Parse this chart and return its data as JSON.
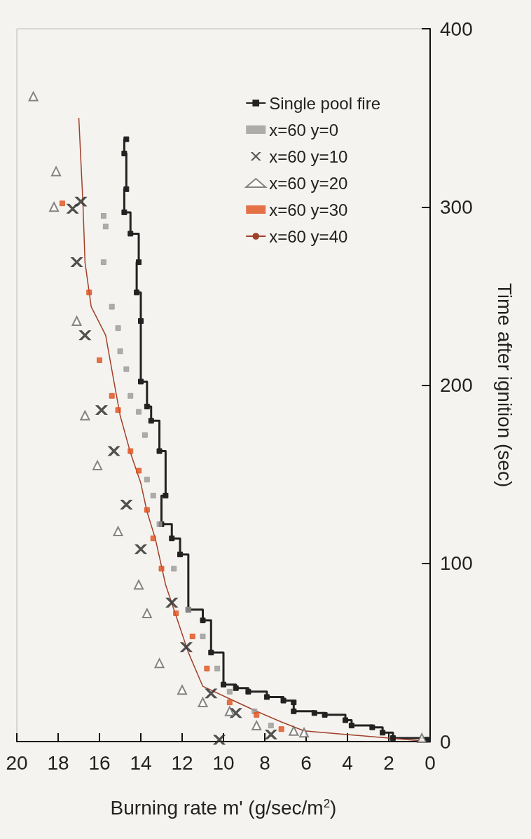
{
  "chart_data": {
    "type": "scatter",
    "xlabel": "Burning rate m' (g/sec/m$^{2}$)",
    "ylabel": "Time after ignition (sec)",
    "xlim": [
      20,
      0
    ],
    "xticks": [
      0,
      2,
      4,
      6,
      8,
      10,
      12,
      14,
      16,
      18,
      20
    ],
    "ylim": [
      0,
      400
    ],
    "yticks": [
      0,
      100,
      200,
      300,
      400
    ],
    "grid": false,
    "legend": "top right",
    "series": [
      {
        "name": "Single pool fire",
        "type": "step",
        "marker": "square",
        "color": "#222222",
        "x": [
          0.1,
          1.8,
          2.3,
          2.8,
          3.8,
          4.1,
          5.1,
          5.6,
          6.6,
          6.6,
          7.1,
          7.9,
          8.8,
          9.4,
          10.0,
          10.6,
          11.0,
          11.7,
          12.1,
          12.5,
          13.0,
          12.8,
          13.1,
          13.5,
          13.7,
          14.0,
          14.0,
          14.2,
          14.1,
          14.5,
          14.8,
          14.7,
          14.8,
          14.7
        ],
        "values": [
          1,
          2,
          5,
          8,
          9,
          12,
          15,
          16,
          17,
          22,
          23,
          25,
          28,
          30,
          32,
          50,
          68,
          74,
          105,
          114,
          122,
          138,
          163,
          180,
          188,
          202,
          236,
          252,
          269,
          285,
          297,
          310,
          330,
          338
        ]
      },
      {
        "name": "x=60 y=0",
        "marker": "square",
        "color": "#9a9a9a",
        "x": [
          7.7,
          8.5,
          9.7,
          10.3,
          11.0,
          11.7,
          12.4,
          13.1,
          13.4,
          13.7,
          13.8,
          14.1,
          14.5,
          14.7,
          15.0,
          15.1,
          15.4,
          15.8,
          15.7,
          15.8
        ],
        "values": [
          9,
          17,
          28,
          41,
          59,
          74,
          97,
          122,
          138,
          147,
          172,
          185,
          194,
          209,
          219,
          232,
          244,
          269,
          289,
          295
        ]
      },
      {
        "name": "x=60 y=10",
        "marker": "cross",
        "color": "#333333",
        "x": [
          10.2,
          7.7,
          9.4,
          10.6,
          11.8,
          12.5,
          14.0,
          14.7,
          15.3,
          15.9,
          16.7,
          17.1,
          17.3,
          16.9
        ],
        "values": [
          1,
          4,
          16,
          27,
          53,
          78,
          108,
          133,
          163,
          186,
          228,
          269,
          299,
          303
        ]
      },
      {
        "name": "x=60 y=20",
        "marker": "triangle",
        "color": "#666666",
        "x": [
          0.4,
          6.1,
          6.6,
          8.4,
          9.7,
          11.0,
          12.0,
          13.1,
          13.7,
          14.1,
          15.1,
          16.1,
          16.7,
          17.1,
          18.2,
          18.1,
          19.2
        ],
        "values": [
          2,
          5,
          6,
          9,
          17,
          22,
          29,
          44,
          72,
          88,
          118,
          155,
          183,
          236,
          300,
          320,
          362
        ]
      },
      {
        "name": "x=60 y=30",
        "marker": "square",
        "color": "#e0501e",
        "x": [
          7.2,
          8.4,
          9.7,
          10.8,
          11.5,
          12.3,
          13.0,
          13.4,
          13.7,
          14.1,
          14.5,
          15.1,
          15.4,
          16.0,
          16.5,
          17.8
        ],
        "values": [
          7,
          15,
          22,
          41,
          59,
          72,
          97,
          114,
          130,
          152,
          163,
          186,
          194,
          214,
          252,
          302
        ]
      },
      {
        "name": "x=60 y=40",
        "type": "line",
        "marker": "none",
        "color": "#a0402a",
        "x": [
          0,
          6.1,
          7.2,
          8.4,
          9.7,
          11.0,
          11.7,
          12.8,
          13.3,
          13.7,
          14.0,
          14.5,
          15.0,
          15.3,
          15.7,
          16.4,
          16.7,
          16.8,
          17.0
        ],
        "values": [
          0,
          6,
          11,
          17,
          24,
          31,
          50,
          88,
          114,
          129,
          145,
          162,
          183,
          202,
          228,
          244,
          269,
          302,
          350
        ]
      }
    ]
  }
}
